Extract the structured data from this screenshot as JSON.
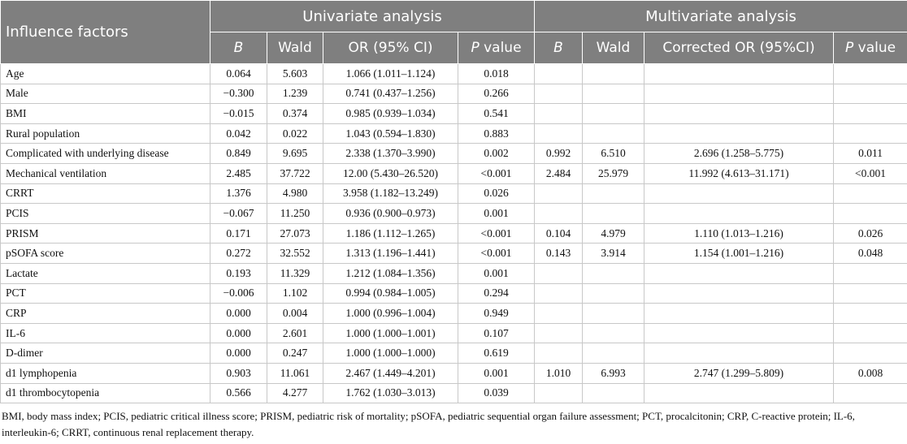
{
  "header": {
    "factor": "Influence factors",
    "univariate": "Univariate analysis",
    "multivariate": "Multivariate analysis",
    "columns": [
      "B",
      "Wald",
      "OR (95% CI)",
      "P value",
      "B",
      "Wald",
      "Corrected OR (95%CI)",
      "P value"
    ]
  },
  "table": {
    "rows": [
      {
        "factor": "Age",
        "uni": [
          "0.064",
          "5.603",
          "1.066 (1.011–1.124)",
          "0.018"
        ]
      },
      {
        "factor": "Male",
        "uni": [
          "−0.300",
          "1.239",
          "0.741 (0.437–1.256)",
          "0.266"
        ]
      },
      {
        "factor": "BMI",
        "uni": [
          "−0.015",
          "0.374",
          "0.985 (0.939–1.034)",
          "0.541"
        ]
      },
      {
        "factor": "Rural population",
        "uni": [
          "0.042",
          "0.022",
          "1.043 (0.594–1.830)",
          "0.883"
        ]
      },
      {
        "factor": "Complicated with underlying disease",
        "uni": [
          "0.849",
          "9.695",
          "2.338 (1.370–3.990)",
          "0.002"
        ],
        "multi": [
          "0.992",
          "6.510",
          "2.696 (1.258–5.775)",
          "0.011"
        ]
      },
      {
        "factor": "Mechanical ventilation",
        "uni": [
          "2.485",
          "37.722",
          "12.00 (5.430–26.520)",
          "<0.001"
        ],
        "multi": [
          "2.484",
          "25.979",
          "11.992 (4.613–31.171)",
          "<0.001"
        ]
      },
      {
        "factor": "CRRT",
        "uni": [
          "1.376",
          "4.980",
          "3.958 (1.182–13.249)",
          "0.026"
        ]
      },
      {
        "factor": "PCIS",
        "uni": [
          "−0.067",
          "11.250",
          "0.936 (0.900–0.973)",
          "0.001"
        ]
      },
      {
        "factor": "PRISM",
        "uni": [
          "0.171",
          "27.073",
          "1.186 (1.112–1.265)",
          "<0.001"
        ],
        "multi": [
          "0.104",
          "4.979",
          "1.110 (1.013–1.216)",
          "0.026"
        ]
      },
      {
        "factor": "pSOFA score",
        "uni": [
          "0.272",
          "32.552",
          "1.313 (1.196–1.441)",
          "<0.001"
        ],
        "multi": [
          "0.143",
          "3.914",
          "1.154 (1.001–1.216)",
          "0.048"
        ]
      },
      {
        "factor": "Lactate",
        "uni": [
          "0.193",
          "11.329",
          "1.212 (1.084–1.356)",
          "0.001"
        ]
      },
      {
        "factor": "PCT",
        "uni": [
          "−0.006",
          "1.102",
          "0.994 (0.984–1.005)",
          "0.294"
        ]
      },
      {
        "factor": "CRP",
        "uni": [
          "0.000",
          "0.004",
          "1.000 (0.996–1.004)",
          "0.949"
        ]
      },
      {
        "factor": "IL-6",
        "uni": [
          "0.000",
          "2.601",
          "1.000 (1.000–1.001)",
          "0.107"
        ]
      },
      {
        "factor": "D-dimer",
        "uni": [
          "0.000",
          "0.247",
          "1.000 (1.000–1.000)",
          "0.619"
        ]
      },
      {
        "factor": "d1 lymphopenia",
        "uni": [
          "0.903",
          "11.061",
          "2.467 (1.449–4.201)",
          "0.001"
        ],
        "multi": [
          "1.010",
          "6.993",
          "2.747 (1.299–5.809)",
          "0.008"
        ]
      },
      {
        "factor": "d1 thrombocytopenia",
        "uni": [
          "0.566",
          "4.277",
          "1.762 (1.030–3.013)",
          "0.039"
        ]
      }
    ]
  },
  "footnote": "BMI, body mass index; PCIS, pediatric critical illness score; PRISM, pediatric risk of mortality; pSOFA, pediatric sequential organ failure assessment; PCT, procalcitonin; CRP, C-reactive protein; IL-6, interleukin-6; CRRT, continuous renal replacement therapy."
}
